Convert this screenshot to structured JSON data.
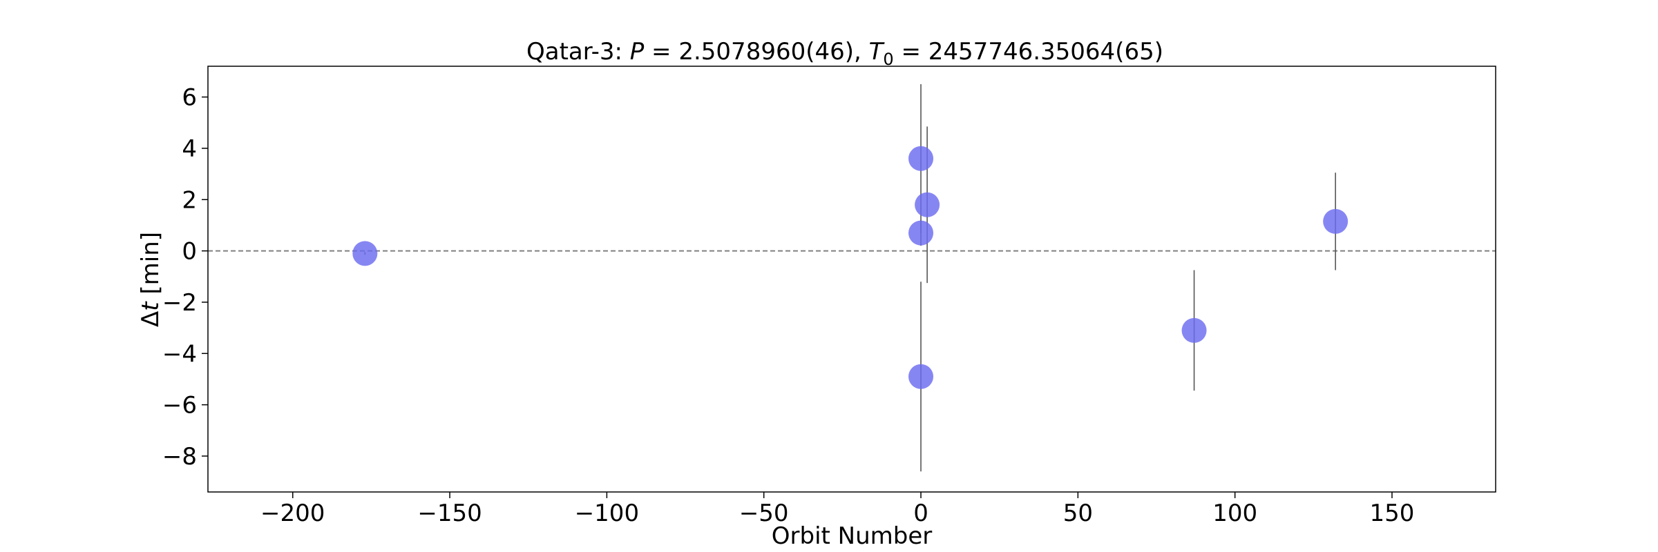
{
  "chart_data": {
    "type": "scatter",
    "title_prefix": "Qatar-3: ",
    "title_p_symbol": "P",
    "title_p_value": " = 2.5078960(46), ",
    "title_t_symbol": "T",
    "title_t_sub": "0",
    "title_t_value": " = 2457746.35064(65)",
    "xlabel": "Orbit Number",
    "ylabel_delta": "Δ",
    "ylabel_t": "t",
    "ylabel_unit": " [min]",
    "xlim": [
      -227,
      183
    ],
    "ylim": [
      -9.4,
      7.2
    ],
    "xticks": [
      -200,
      -150,
      -100,
      -50,
      0,
      50,
      100,
      150
    ],
    "xtick_labels": [
      "−200",
      "−150",
      "−100",
      "−50",
      "0",
      "50",
      "100",
      "150"
    ],
    "yticks": [
      -8,
      -6,
      -4,
      -2,
      0,
      2,
      4,
      6
    ],
    "ytick_labels": [
      "−8",
      "−6",
      "−4",
      "−2",
      "0",
      "2",
      "4",
      "6"
    ],
    "reference_line_y": 0,
    "grid": false,
    "marker_color": "#6b6bf0",
    "errorbar_color": "#555555",
    "points": [
      {
        "x": -177,
        "y": -0.1,
        "err": 0.05
      },
      {
        "x": 0,
        "y": 3.6,
        "err": 2.9
      },
      {
        "x": 0,
        "y": 0.7,
        "err": 0.5
      },
      {
        "x": 0,
        "y": -4.9,
        "err": 3.7
      },
      {
        "x": 2,
        "y": 1.8,
        "err": 3.05
      },
      {
        "x": 87,
        "y": -3.1,
        "err": 2.35
      },
      {
        "x": 132,
        "y": 1.15,
        "err": 1.9
      }
    ]
  }
}
